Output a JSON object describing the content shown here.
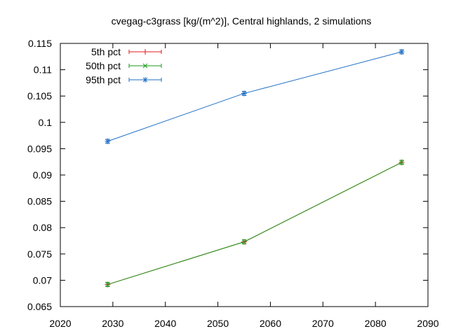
{
  "chart_data": {
    "type": "line",
    "title": "cvegag-c3grass [kg/(m^2)], Central highlands, 2 simulations",
    "xlabel": "",
    "ylabel": "",
    "xlim": [
      2020,
      2090
    ],
    "ylim": [
      0.065,
      0.115
    ],
    "xticks": [
      2020,
      2030,
      2040,
      2050,
      2060,
      2070,
      2080,
      2090
    ],
    "xtick_labels": [
      "2020",
      "2030",
      "2040",
      "2050",
      "2060",
      "2070",
      "2080",
      "2090"
    ],
    "yticks": [
      0.065,
      0.07,
      0.075,
      0.08,
      0.085,
      0.09,
      0.095,
      0.1,
      0.105,
      0.11,
      0.115
    ],
    "ytick_labels": [
      "0.065",
      "0.07",
      "0.075",
      "0.08",
      "0.085",
      "0.09",
      "0.095",
      "0.1",
      "0.105",
      "0.11",
      "0.115"
    ],
    "grid": false,
    "legend_position": "top-left",
    "x": [
      2029,
      2055,
      2085
    ],
    "series": [
      {
        "name": "5th pct",
        "values": [
          0.0692,
          0.0773,
          0.0924
        ],
        "color": "#e41a1c",
        "marker": "plus"
      },
      {
        "name": "50th pct",
        "values": [
          0.0692,
          0.0773,
          0.0924
        ],
        "color": "#1a9a1a",
        "marker": "cross"
      },
      {
        "name": "95th pct",
        "values": [
          0.0964,
          0.1055,
          0.1134
        ],
        "color": "#1f6fc5",
        "marker": "star"
      }
    ]
  }
}
